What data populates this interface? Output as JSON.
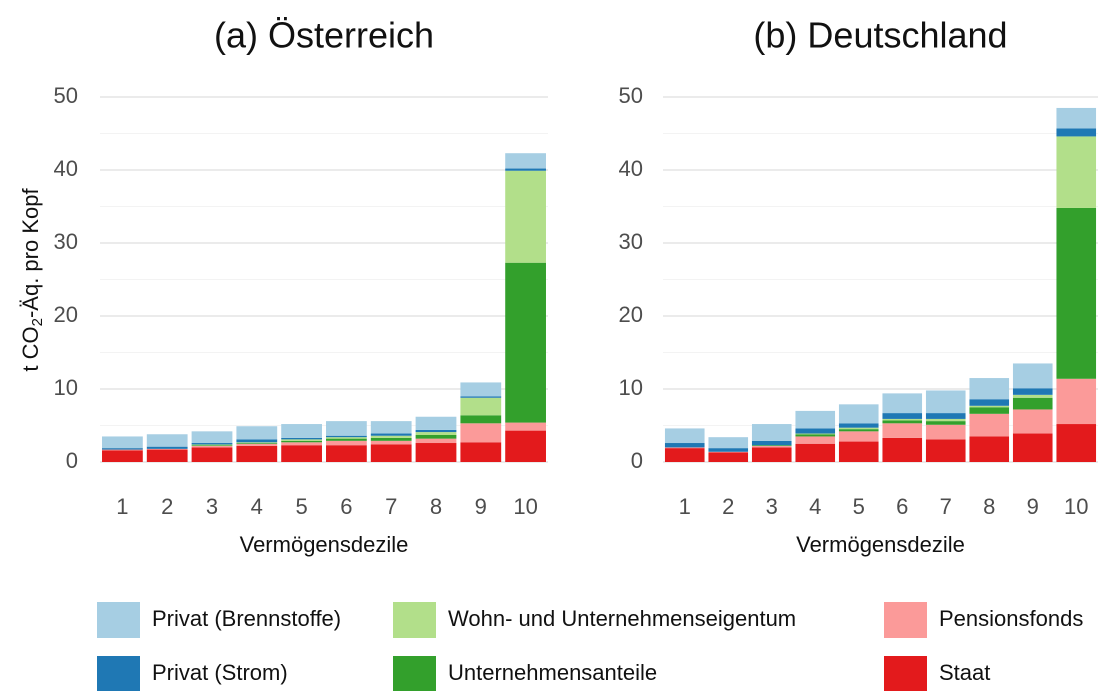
{
  "chart_data": [
    {
      "type": "bar",
      "stacked": true,
      "title": "(a) Österreich",
      "x_label": "Vermögensdezile",
      "y_label": [
        "t CO",
        "2",
        "-Äq. pro Kopf"
      ],
      "categories": [
        "1",
        "2",
        "3",
        "4",
        "5",
        "6",
        "7",
        "8",
        "9",
        "10"
      ],
      "ylim": [
        0,
        50
      ],
      "yticks": [
        0,
        10,
        20,
        30,
        40,
        50
      ],
      "grid": true,
      "series": [
        {
          "name": "Staat",
          "color": "#e31a1c",
          "values": [
            1.6,
            1.7,
            2.0,
            2.2,
            2.3,
            2.3,
            2.4,
            2.6,
            2.7,
            4.3
          ]
        },
        {
          "name": "Pensionsfonds",
          "color": "#fb9a99",
          "values": [
            0.1,
            0.1,
            0.2,
            0.3,
            0.4,
            0.6,
            0.5,
            0.6,
            2.6,
            1.1
          ]
        },
        {
          "name": "Unternehmensanteile",
          "color": "#33a02c",
          "values": [
            0.0,
            0.0,
            0.1,
            0.1,
            0.2,
            0.3,
            0.4,
            0.5,
            1.1,
            21.9
          ]
        },
        {
          "name": "Wohn- und Unternehmenseigentum",
          "color": "#b2df8a",
          "values": [
            0.0,
            0.0,
            0.1,
            0.1,
            0.2,
            0.2,
            0.3,
            0.4,
            2.4,
            12.6
          ]
        },
        {
          "name": "Privat (Strom)",
          "color": "#1f78b4",
          "values": [
            0.2,
            0.3,
            0.2,
            0.4,
            0.2,
            0.2,
            0.3,
            0.3,
            0.2,
            0.3
          ]
        },
        {
          "name": "Privat (Brennstoffe)",
          "color": "#a6cee3",
          "values": [
            1.6,
            1.7,
            1.6,
            1.8,
            1.9,
            2.0,
            1.7,
            1.8,
            1.9,
            2.1
          ]
        }
      ]
    },
    {
      "type": "bar",
      "stacked": true,
      "title": "(b) Deutschland",
      "x_label": "Vermögensdezile",
      "categories": [
        "1",
        "2",
        "3",
        "4",
        "5",
        "6",
        "7",
        "8",
        "9",
        "10"
      ],
      "ylim": [
        0,
        50
      ],
      "yticks": [
        0,
        10,
        20,
        30,
        40,
        50
      ],
      "grid": true,
      "series": [
        {
          "name": "Staat",
          "color": "#e31a1c",
          "values": [
            1.9,
            1.3,
            2.0,
            2.5,
            2.8,
            3.3,
            3.1,
            3.5,
            3.9,
            5.2
          ]
        },
        {
          "name": "Pensionsfonds",
          "color": "#fb9a99",
          "values": [
            0.1,
            0.1,
            0.2,
            1.0,
            1.4,
            2.0,
            2.0,
            3.1,
            3.3,
            6.2
          ]
        },
        {
          "name": "Unternehmensanteile",
          "color": "#33a02c",
          "values": [
            0.0,
            0.0,
            0.1,
            0.3,
            0.3,
            0.4,
            0.5,
            0.9,
            1.6,
            23.4
          ]
        },
        {
          "name": "Wohn- und Unternehmenseigentum",
          "color": "#b2df8a",
          "values": [
            0.0,
            0.0,
            0.0,
            0.1,
            0.2,
            0.2,
            0.3,
            0.2,
            0.4,
            9.8
          ]
        },
        {
          "name": "Privat (Strom)",
          "color": "#1f78b4",
          "values": [
            0.6,
            0.5,
            0.6,
            0.7,
            0.6,
            0.8,
            0.8,
            0.9,
            0.9,
            1.1
          ]
        },
        {
          "name": "Privat (Brennstoffe)",
          "color": "#a6cee3",
          "values": [
            2.0,
            1.5,
            2.3,
            2.4,
            2.6,
            2.7,
            3.1,
            2.9,
            3.4,
            2.8
          ]
        }
      ]
    }
  ]
}
